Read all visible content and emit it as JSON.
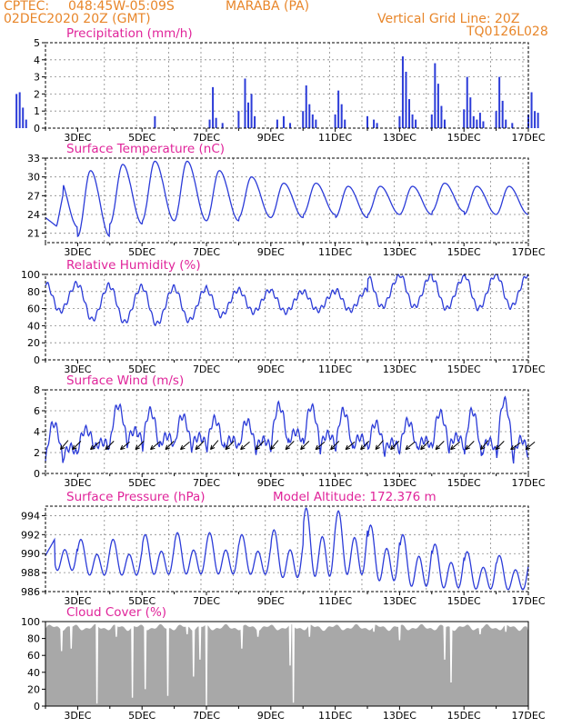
{
  "header": {
    "org": "CPTEC:",
    "coords": "048:45W-05:09S",
    "location": "MARABA (PA)",
    "date": "02DEC2020 20Z (GMT)",
    "grid_line": "Vertical Grid Line: 20Z",
    "model_code": "TQ0126L028"
  },
  "colors": {
    "header": "#e8862a",
    "title": "#e0249a",
    "line": "#2b3bd8",
    "bar": "#2b3bd8",
    "cloud": "#a8a8a8",
    "arrow": "#000000"
  },
  "x_ticks": [
    "3DEC",
    "5DEC",
    "7DEC",
    "9DEC",
    "11DEC",
    "13DEC",
    "15DEC",
    "17DEC"
  ],
  "chart_data": [
    {
      "id": "precip",
      "type": "bar",
      "title": "Precipitation (mm/h)",
      "ylim": [
        0,
        5
      ],
      "yticks": [
        0,
        1,
        2,
        3,
        4,
        5
      ],
      "grid": true,
      "events": [
        [
          0.3,
          0.3
        ],
        [
          0.5,
          0.5
        ],
        [
          1.1,
          2.0
        ],
        [
          1.2,
          2.1
        ],
        [
          1.3,
          1.2
        ],
        [
          1.4,
          0.5
        ],
        [
          5.4,
          0.7
        ],
        [
          7.1,
          0.5
        ],
        [
          7.2,
          2.4
        ],
        [
          7.3,
          0.6
        ],
        [
          7.5,
          0.3
        ],
        [
          8.0,
          1.0
        ],
        [
          8.2,
          2.9
        ],
        [
          8.3,
          1.5
        ],
        [
          8.4,
          2.0
        ],
        [
          8.5,
          0.7
        ],
        [
          9.2,
          0.5
        ],
        [
          9.4,
          0.7
        ],
        [
          9.6,
          0.3
        ],
        [
          10.0,
          1.0
        ],
        [
          10.1,
          2.5
        ],
        [
          10.2,
          1.4
        ],
        [
          10.3,
          0.8
        ],
        [
          10.4,
          0.5
        ],
        [
          11.0,
          0.8
        ],
        [
          11.1,
          2.2
        ],
        [
          11.2,
          1.4
        ],
        [
          11.3,
          0.5
        ],
        [
          12.0,
          0.7
        ],
        [
          12.2,
          0.5
        ],
        [
          12.3,
          0.3
        ],
        [
          13.0,
          0.7
        ],
        [
          13.1,
          4.2
        ],
        [
          13.2,
          3.3
        ],
        [
          13.3,
          1.7
        ],
        [
          13.4,
          0.8
        ],
        [
          13.5,
          0.5
        ],
        [
          14.0,
          0.8
        ],
        [
          14.1,
          3.8
        ],
        [
          14.2,
          2.6
        ],
        [
          14.3,
          1.3
        ],
        [
          14.4,
          0.5
        ],
        [
          15.0,
          1.1
        ],
        [
          15.1,
          3.0
        ],
        [
          15.2,
          1.8
        ],
        [
          15.3,
          0.7
        ],
        [
          15.4,
          0.5
        ],
        [
          15.5,
          0.9
        ],
        [
          15.6,
          0.4
        ],
        [
          16.0,
          1.0
        ],
        [
          16.1,
          3.0
        ],
        [
          16.2,
          1.6
        ],
        [
          16.3,
          0.5
        ],
        [
          16.5,
          0.3
        ],
        [
          17.0,
          0.8
        ],
        [
          17.1,
          2.1
        ],
        [
          17.2,
          1.0
        ],
        [
          17.3,
          0.9
        ]
      ]
    },
    {
      "id": "temp",
      "type": "line",
      "title": "Surface Temperature (nC)",
      "ylim": [
        19.5,
        33
      ],
      "yticks": [
        21,
        24,
        27,
        30,
        33
      ],
      "grid": true,
      "amin": [
        22.0,
        20.5,
        22.5,
        23.0,
        23.0,
        23.0,
        23.5,
        23.5,
        24.0,
        23.5,
        24.0,
        24.0,
        24.5,
        24.0,
        24.0,
        24.5
      ],
      "amax": [
        30.0,
        31.0,
        32.0,
        32.5,
        32.5,
        31.0,
        30.0,
        29.0,
        29.0,
        28.5,
        28.5,
        28.5,
        29.0,
        28.5,
        28.5,
        28.0
      ]
    },
    {
      "id": "rh",
      "type": "line",
      "title": "Relative Humidity (%)",
      "ylim": [
        0,
        100
      ],
      "yticks": [
        0,
        20,
        40,
        60,
        80,
        100
      ],
      "grid": true,
      "lo": [
        57.0,
        47.0,
        44.0,
        42.0,
        46.0,
        52.0,
        56.0,
        56.0,
        58.0,
        58.0,
        62.0,
        62.0,
        60.0,
        60.0,
        62.0,
        64.0
      ],
      "hi": [
        90.0,
        88.0,
        86.0,
        85.0,
        84.0,
        82.0,
        82.0,
        80.0,
        80.0,
        82.0,
        98.0,
        100.0,
        96.0,
        100.0,
        100.0,
        100.0
      ]
    },
    {
      "id": "wind",
      "type": "line",
      "title": "Surface Wind (m/s)",
      "ylim": [
        0,
        8
      ],
      "yticks": [
        0,
        2,
        4,
        6,
        8
      ],
      "grid": true,
      "lo": [
        1.0,
        2.2,
        2.5,
        2.0,
        2.2,
        2.0,
        2.0,
        2.3,
        2.0,
        1.8,
        1.8,
        2.0,
        2.0,
        1.2,
        0.8,
        2.0
      ],
      "hi": [
        4.8,
        4.2,
        6.5,
        6.0,
        5.5,
        5.2,
        5.0,
        6.5,
        6.4,
        6.0,
        4.8,
        5.0,
        5.8,
        6.0,
        7.0,
        4.5
      ],
      "arrow_times": [
        0.5,
        0.9,
        1.5,
        2.0,
        2.5,
        3.0,
        3.5,
        4.0,
        4.5,
        5.0,
        5.5,
        6.0,
        6.5,
        7.0,
        7.5,
        8.0,
        8.5,
        9.0,
        9.5,
        10.0,
        10.5,
        11.0,
        11.5,
        12.0,
        12.5,
        13.0,
        13.5,
        14.0,
        14.5,
        15.0,
        15.5,
        16.0
      ],
      "arrow_dirs_deg": [
        50,
        45,
        40,
        45,
        40,
        45,
        40,
        45,
        40,
        45,
        50,
        45,
        40,
        45,
        50,
        45,
        45,
        40,
        45,
        40,
        45,
        50,
        45,
        40,
        45,
        45,
        40,
        45,
        50,
        45,
        35,
        40
      ]
    },
    {
      "id": "pres",
      "type": "line",
      "title": "Surface Pressure (hPa)",
      "annotation": "Model Altitude: 172.376 m",
      "ylim": [
        986,
        995
      ],
      "yticks": [
        986,
        988,
        990,
        992,
        994
      ],
      "grid": true,
      "semidiurnal": [
        989.8,
        992.5,
        988.5,
        991.8
      ],
      "hi": [
        992.0,
        991.5,
        991.5,
        992.0,
        992.2,
        992.2,
        992.0,
        992.5,
        994.8,
        994.5,
        993.0,
        992.0,
        991.0,
        990.2,
        989.8,
        989.5
      ],
      "lo": [
        987.5,
        987.0,
        987.0,
        987.0,
        987.0,
        987.0,
        987.0,
        986.5,
        986.2,
        986.5,
        986.0,
        985.5,
        985.5,
        985.5,
        985.5,
        985.8
      ]
    },
    {
      "id": "cloud",
      "type": "area",
      "title": "Cloud Cover (%)",
      "ylim": [
        0,
        100
      ],
      "yticks": [
        0,
        20,
        40,
        60,
        80,
        100
      ],
      "grid": false,
      "base": 93,
      "dips": [
        [
          0.5,
          80
        ],
        [
          0.8,
          72
        ],
        [
          1.0,
          30
        ],
        [
          2.5,
          65
        ],
        [
          2.8,
          68
        ],
        [
          3.6,
          3
        ],
        [
          4.2,
          82
        ],
        [
          4.7,
          10
        ],
        [
          5.1,
          20
        ],
        [
          5.8,
          12
        ],
        [
          6.4,
          85
        ],
        [
          6.6,
          35
        ],
        [
          6.8,
          55
        ],
        [
          7.0,
          0
        ],
        [
          8.1,
          68
        ],
        [
          8.6,
          82
        ],
        [
          9.6,
          48
        ],
        [
          9.7,
          4
        ],
        [
          10.2,
          82
        ],
        [
          12.2,
          88
        ],
        [
          13.0,
          78
        ],
        [
          14.4,
          55
        ],
        [
          14.6,
          28
        ],
        [
          15.5,
          85
        ],
        [
          16.3,
          88
        ],
        [
          17.0,
          90
        ]
      ]
    }
  ]
}
